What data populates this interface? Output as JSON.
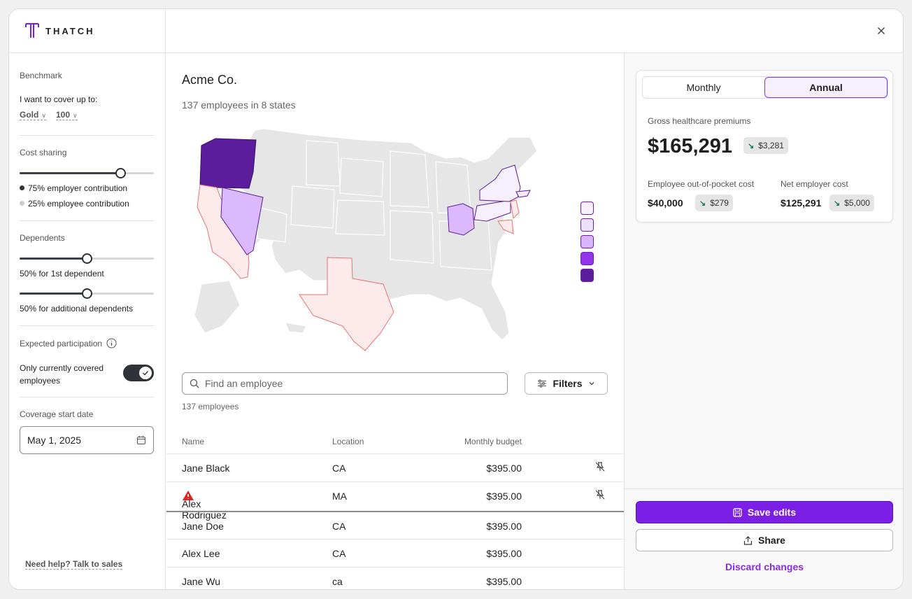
{
  "app": {
    "logo_text": "THATCH"
  },
  "sidebar": {
    "benchmark_heading": "Benchmark",
    "cover_label": "I want to cover up to:",
    "plan_tier": "Gold",
    "plan_percent": "100",
    "cost_sharing_heading": "Cost sharing",
    "cost_sharing_value": 0.75,
    "employer_contribution": "75% employer contribution",
    "employee_contribution": "25% employee contribution",
    "dependents_heading": "Dependents",
    "first_dependent_value": 0.5,
    "first_dependent_label": "50% for 1st dependent",
    "additional_dependent_value": 0.5,
    "additional_dependent_label": "50% for additional dependents",
    "participation_heading": "Expected participation",
    "covered_toggle_label_line1": "Only currently covered",
    "covered_toggle_label_line2": "employees",
    "covered_toggle_on": true,
    "coverage_start_heading": "Coverage start date",
    "coverage_start_value": "May 1, 2025",
    "help_link": "Need help? Talk to sales"
  },
  "main": {
    "company_name": "Acme Co.",
    "summary": "137 employees in 8 states",
    "search_placeholder": "Find an employee",
    "filters_label": "Filters",
    "employee_count": "137 employees",
    "columns": {
      "name": "Name",
      "location": "Location",
      "budget": "Monthly budget"
    },
    "rows": [
      {
        "name": "Jane Black",
        "location": "CA",
        "budget": "$395.00",
        "pinned": true,
        "warning": false
      },
      {
        "name": "Alex Rodriguez",
        "location": "MA",
        "budget": "$395.00",
        "pinned": true,
        "warning": true
      },
      {
        "name": "Jane Doe",
        "location": "CA",
        "budget": "$395.00",
        "pinned": false,
        "warning": false
      },
      {
        "name": "Alex Lee",
        "location": "CA",
        "budget": "$395.00",
        "pinned": false,
        "warning": false
      },
      {
        "name": "Jane Wu",
        "location": "ca",
        "budget": "$395.00",
        "pinned": false,
        "warning": false
      }
    ],
    "legend_colors": [
      "#f6f0fe",
      "#ede0fc",
      "#d8b4fe",
      "#9333ea",
      "#5b1d9b"
    ]
  },
  "summary_panel": {
    "tab_monthly": "Monthly",
    "tab_annual": "Annual",
    "active_tab": "Annual",
    "gross_label": "Gross healthcare premiums",
    "gross_value": "$165,291",
    "gross_delta": "$3,281",
    "oop_label": "Employee out-of-pocket cost",
    "oop_value": "$40,000",
    "oop_delta": "$279",
    "net_label": "Net employer cost",
    "net_value": "$125,291",
    "net_delta": "$5,000",
    "save_label": "Save edits",
    "share_label": "Share",
    "discard_label": "Discard changes"
  },
  "colors": {
    "accent": "#7c1fe6",
    "warning": "#dc2626",
    "delta_down": "#0f7a52"
  }
}
